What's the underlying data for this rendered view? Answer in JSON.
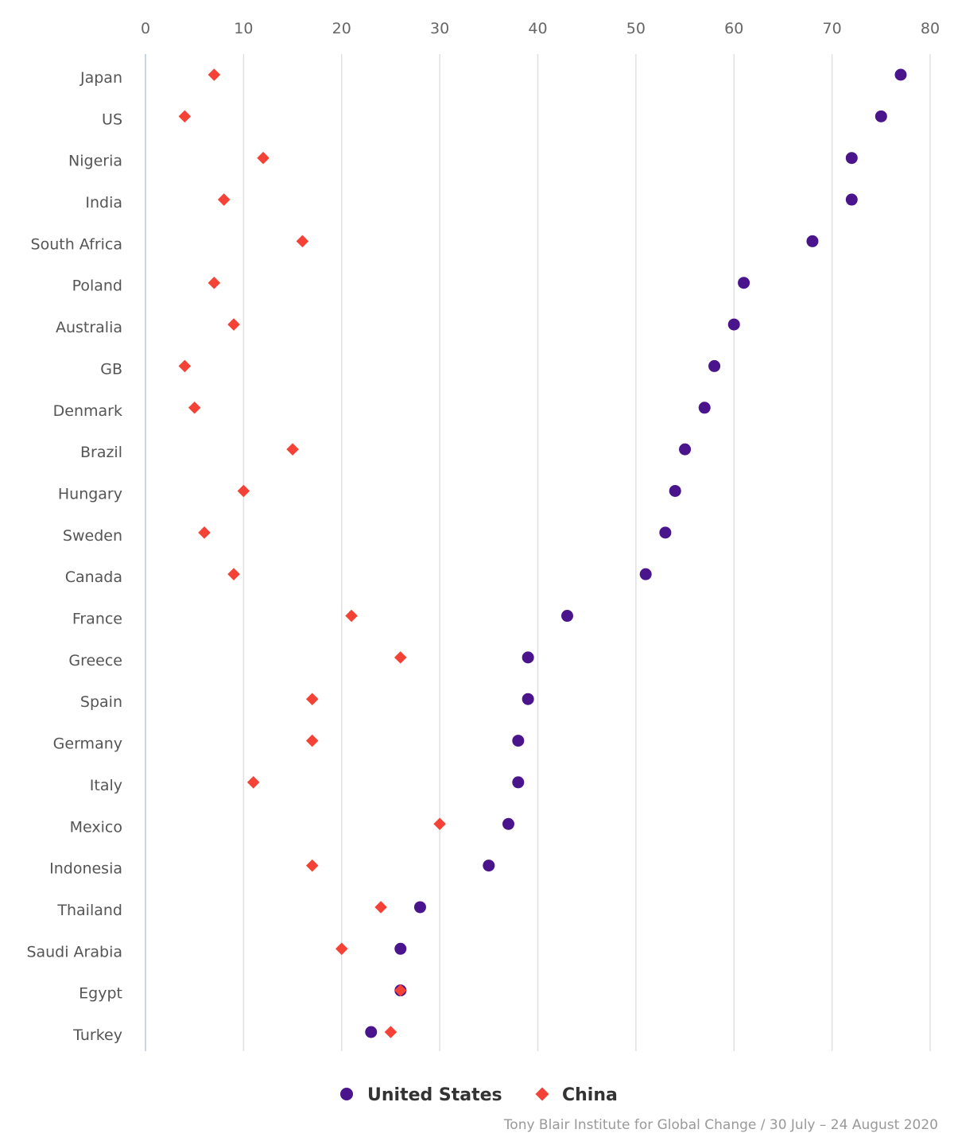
{
  "chart_data": {
    "type": "scatter",
    "title": "",
    "xlabel": "",
    "ylabel": "",
    "xlim": [
      0,
      80
    ],
    "xticks": [
      0,
      10,
      20,
      30,
      40,
      50,
      60,
      70,
      80
    ],
    "grid": "vertical",
    "x_axis_position": "top",
    "legend_placement": "bottom-center",
    "categories": [
      "Japan",
      "US",
      "Nigeria",
      "India",
      "South Africa",
      "Poland",
      "Australia",
      "GB",
      "Denmark",
      "Brazil",
      "Hungary",
      "Sweden",
      "Canada",
      "France",
      "Greece",
      "Spain",
      "Germany",
      "Italy",
      "Mexico",
      "Indonesia",
      "Thailand",
      "Saudi Arabia",
      "Egypt",
      "Turkey"
    ],
    "series": [
      {
        "name": "United States",
        "marker": "circle",
        "color": "#4a148c",
        "values": [
          77,
          75,
          72,
          72,
          68,
          61,
          60,
          58,
          57,
          55,
          54,
          53,
          51,
          43,
          39,
          39,
          38,
          38,
          37,
          35,
          28,
          26,
          26,
          23
        ]
      },
      {
        "name": "China",
        "marker": "diamond",
        "color": "#f44336",
        "values": [
          7,
          4,
          12,
          8,
          16,
          7,
          9,
          4,
          5,
          15,
          10,
          6,
          9,
          21,
          26,
          17,
          17,
          11,
          30,
          17,
          24,
          20,
          26,
          25
        ]
      }
    ]
  },
  "credit": "Tony Blair Institute for Global Change / 30 July – 24 August 2020"
}
